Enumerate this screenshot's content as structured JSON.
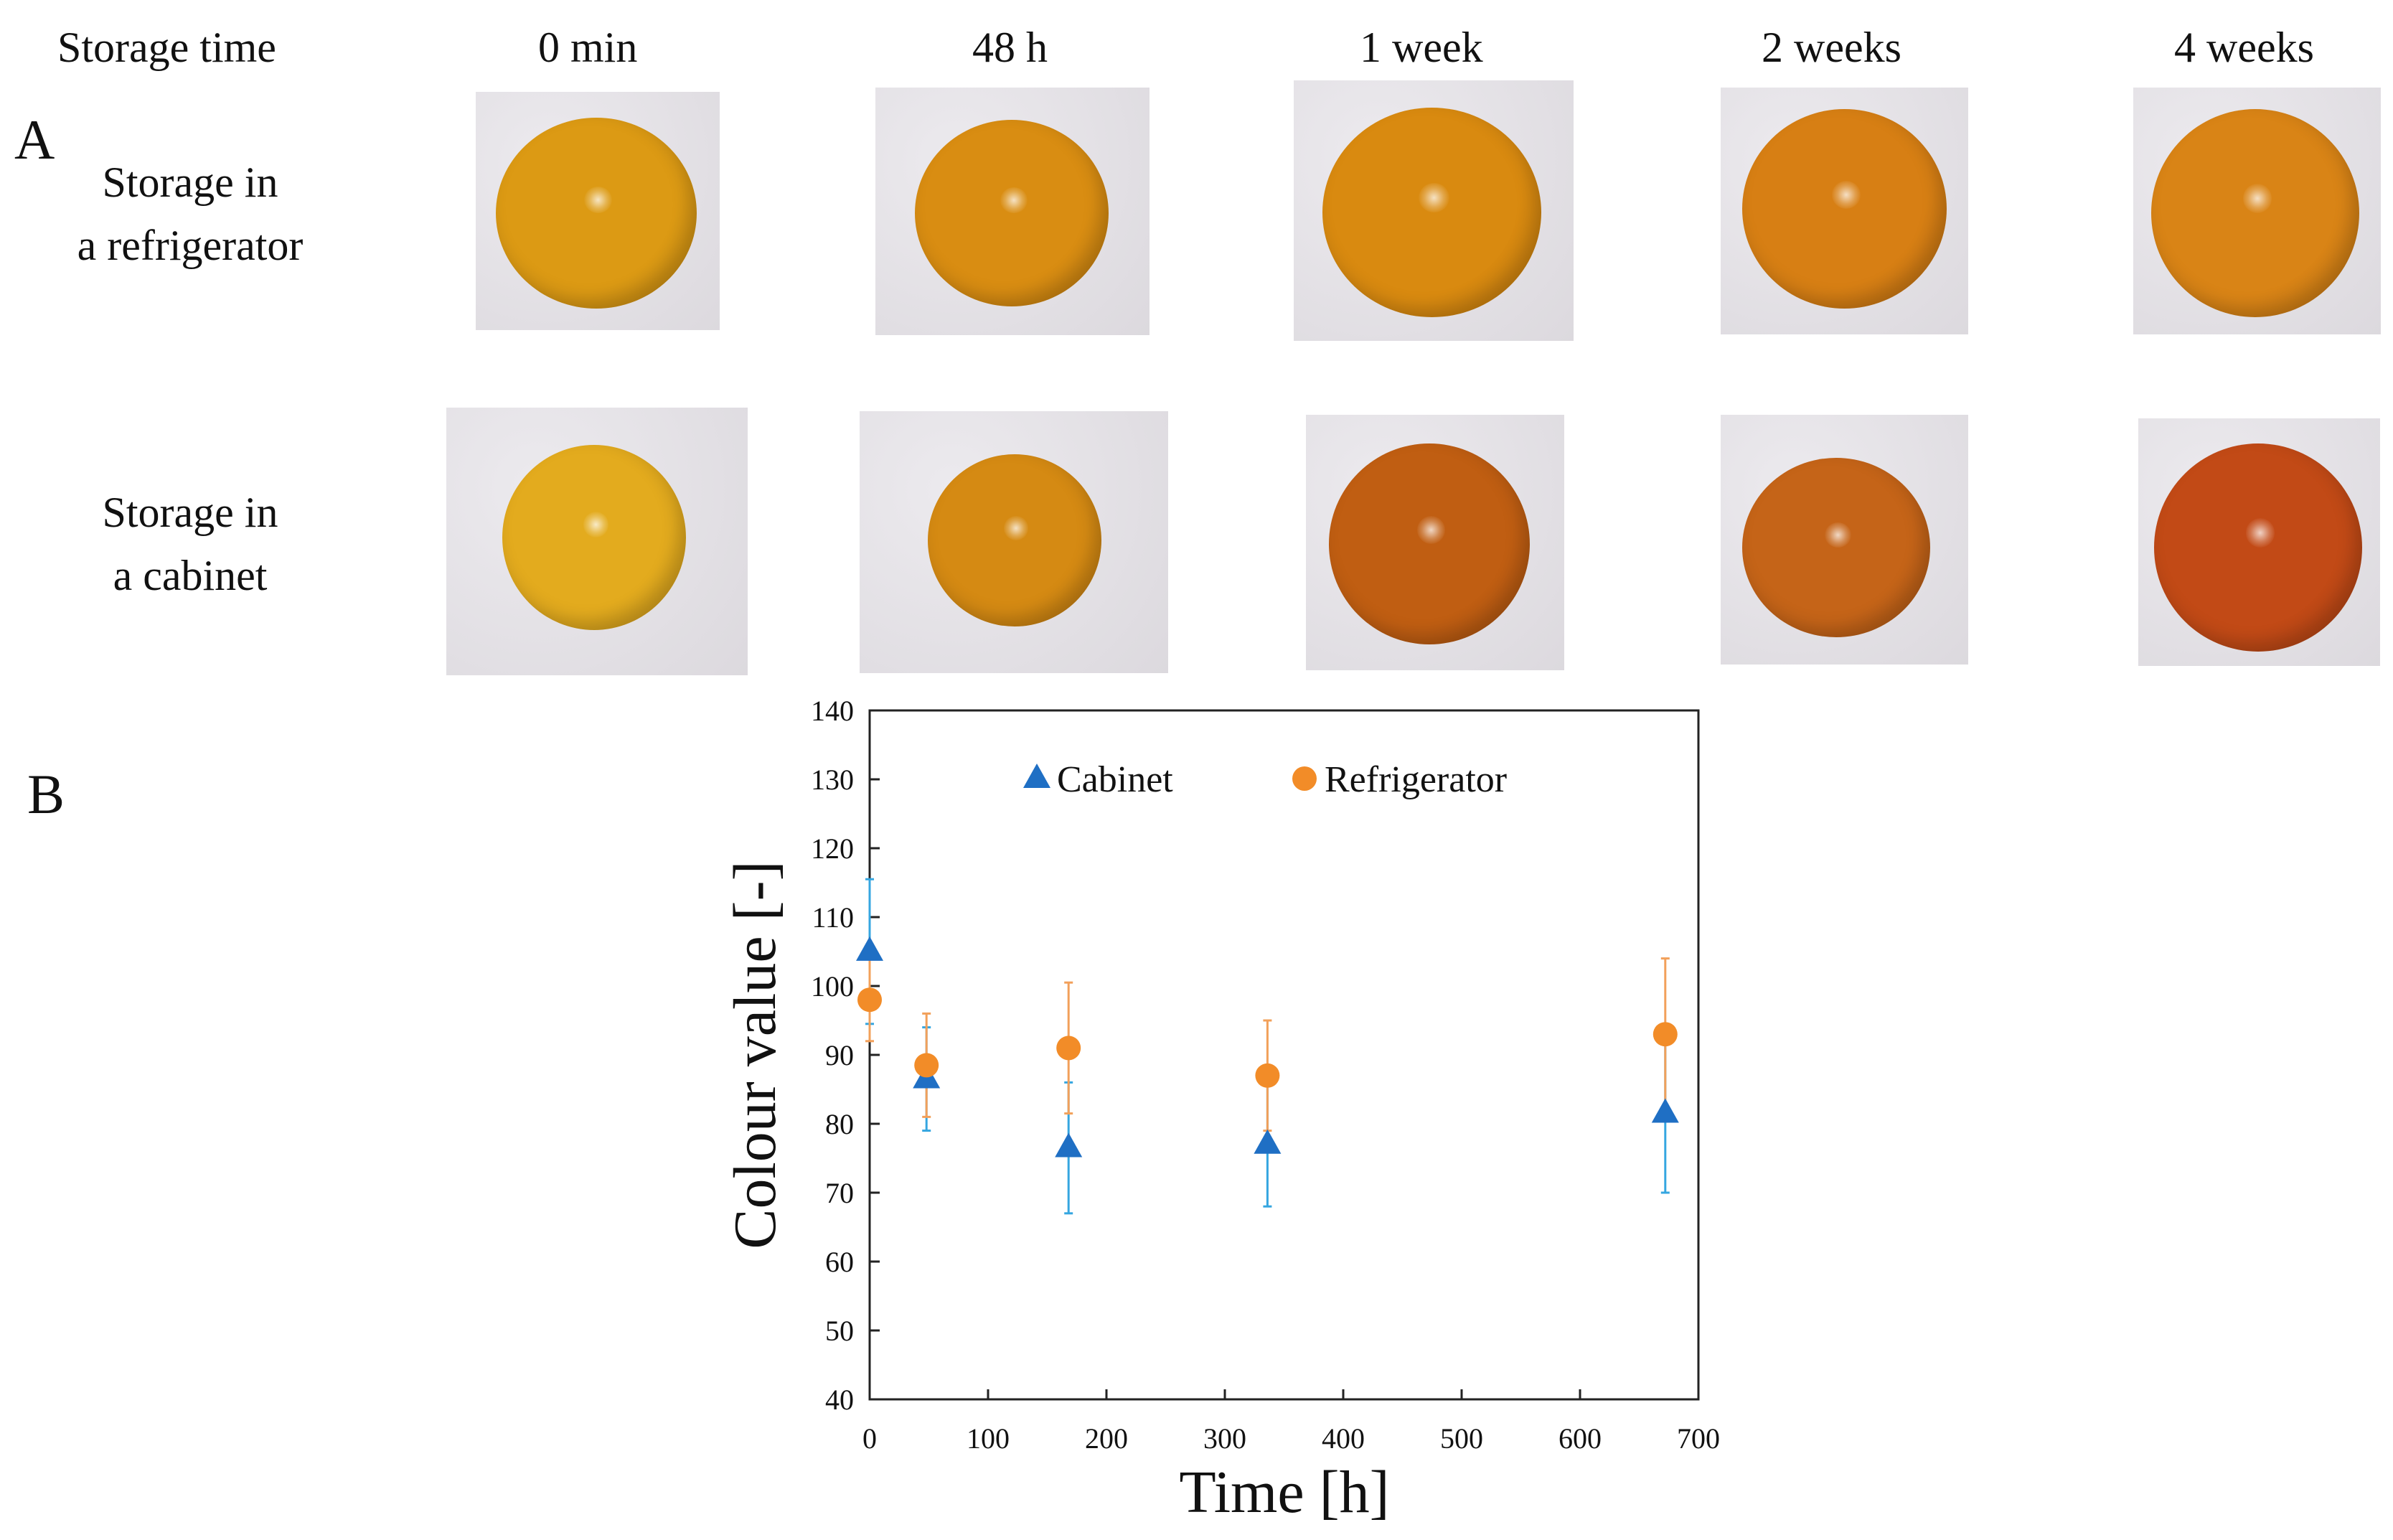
{
  "panel_a": {
    "letter": "A",
    "header_label": "Storage time",
    "time_points": [
      "0 min",
      "48 h",
      "1 week",
      "2 weeks",
      "4 weeks"
    ],
    "rows": [
      {
        "label_line1": "Storage in",
        "label_line2": "a refrigerator",
        "bead_colors": [
          "#dc9a14",
          "#d98d12",
          "#d98a10",
          "#d77f14",
          "#d98416"
        ]
      },
      {
        "label_line1": "Storage in",
        "label_line2": "a cabinet",
        "bead_colors": [
          "#e3ab1e",
          "#d58a13",
          "#c05e12",
          "#c56418",
          "#c24a16"
        ]
      }
    ]
  },
  "panel_b": {
    "letter": "B"
  },
  "chart_data": {
    "type": "scatter",
    "title": "",
    "xlabel": "Time [h]",
    "ylabel": "Colour value [-]",
    "xlim": [
      0,
      700
    ],
    "ylim": [
      40,
      140
    ],
    "xticks": [
      0,
      100,
      200,
      300,
      400,
      500,
      600,
      700
    ],
    "yticks": [
      40,
      50,
      60,
      70,
      80,
      90,
      100,
      110,
      120,
      130,
      140
    ],
    "grid": false,
    "legend": "top, inside",
    "series": [
      {
        "name": "Cabinet",
        "marker": "triangle",
        "color": "#1f6fc4",
        "error_color": "#35a6e0",
        "x": [
          0,
          48,
          168,
          336,
          672
        ],
        "y": [
          105,
          86.5,
          76.5,
          77,
          81.5
        ],
        "err": [
          10.5,
          7.5,
          9.5,
          9,
          11.5
        ]
      },
      {
        "name": "Refrigerator",
        "marker": "circle",
        "color": "#f28c28",
        "error_color": "#f2a05a",
        "x": [
          0,
          48,
          168,
          336,
          672
        ],
        "y": [
          98,
          88.5,
          91,
          87,
          93
        ],
        "err": [
          6,
          7.5,
          9.5,
          8,
          11
        ]
      }
    ]
  }
}
